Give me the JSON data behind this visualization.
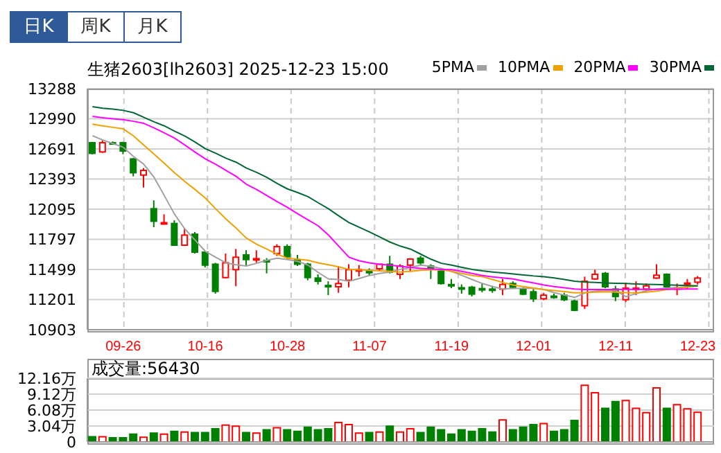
{
  "chart_data": [
    {
      "type": "candlestick",
      "title": "生猪2603[lh2603] 2025-12-23 15:00",
      "annotations": [
        "日K",
        "周K",
        "月K"
      ],
      "categories": [
        null,
        null,
        null,
        "09-26",
        null,
        null,
        null,
        null,
        null,
        null,
        null,
        "10-16",
        null,
        null,
        null,
        null,
        null,
        null,
        null,
        "10-28",
        null,
        null,
        null,
        null,
        null,
        null,
        null,
        "11-07",
        null,
        null,
        null,
        null,
        null,
        null,
        null,
        "11-19",
        null,
        null,
        null,
        null,
        null,
        null,
        null,
        "12-01",
        null,
        null,
        null,
        null,
        null,
        null,
        null,
        "12-11",
        null,
        null,
        null,
        null,
        null,
        null,
        null,
        "12-23"
      ],
      "ohlc": [
        [
          12753,
          12762,
          12639,
          12648
        ],
        [
          12662,
          12776,
          12653,
          12753
        ],
        [
          12753,
          12766,
          12735,
          12748
        ],
        [
          12753,
          12762,
          12639,
          12671
        ],
        [
          12593,
          12602,
          12420,
          12456
        ],
        [
          12433,
          12502,
          12310,
          12479
        ],
        [
          12100,
          12183,
          11917,
          11976
        ],
        [
          11953,
          12045,
          11944,
          11962
        ],
        [
          11954,
          11986,
          11735,
          11739
        ],
        [
          11739,
          11908,
          11739,
          11839
        ],
        [
          11848,
          11870,
          11657,
          11670
        ],
        [
          11670,
          11680,
          11519,
          11542
        ],
        [
          11551,
          11565,
          11259,
          11282
        ],
        [
          11419,
          11657,
          11410,
          11565
        ],
        [
          11497,
          11702,
          11333,
          11620
        ],
        [
          11643,
          11689,
          11533,
          11597
        ],
        [
          11597,
          11689,
          11565,
          11606
        ],
        [
          11588,
          11611,
          11460,
          11574
        ],
        [
          11656,
          11748,
          11633,
          11725
        ],
        [
          11725,
          11748,
          11597,
          11625
        ],
        [
          11597,
          11643,
          11533,
          11551
        ],
        [
          11551,
          11565,
          11392,
          11419
        ],
        [
          11414,
          11451,
          11350,
          11382
        ],
        [
          11341,
          11382,
          11245,
          11336
        ],
        [
          11328,
          11533,
          11268,
          11360
        ],
        [
          11392,
          11551,
          11323,
          11497
        ],
        [
          11488,
          11543,
          11430,
          11497
        ],
        [
          11480,
          11510,
          11440,
          11470
        ],
        [
          11506,
          11551,
          11492,
          11551
        ],
        [
          11551,
          11634,
          11460,
          11474
        ],
        [
          11451,
          11551,
          11405,
          11533
        ],
        [
          11542,
          11611,
          11474,
          11602
        ],
        [
          11611,
          11634,
          11533,
          11565
        ],
        [
          11533,
          11551,
          11405,
          11506
        ],
        [
          11483,
          11497,
          11350,
          11360
        ],
        [
          11350,
          11405,
          11314,
          11346
        ],
        [
          11318,
          11351,
          11259,
          11314
        ],
        [
          11323,
          11337,
          11232,
          11255
        ],
        [
          11310,
          11365,
          11273,
          11305
        ],
        [
          11305,
          11337,
          11268,
          11300
        ],
        [
          11305,
          11405,
          11245,
          11351
        ],
        [
          11360,
          11382,
          11314,
          11323
        ],
        [
          11305,
          11323,
          11245,
          11255
        ],
        [
          11278,
          11305,
          11177,
          11209
        ],
        [
          11209,
          11268,
          11196,
          11245
        ],
        [
          11235,
          11259,
          11209,
          11231
        ],
        [
          11245,
          11268,
          11186,
          11200
        ],
        [
          11186,
          11200,
          11086,
          11095
        ],
        [
          11140,
          11428,
          11109,
          11382
        ],
        [
          11405,
          11497,
          11396,
          11451
        ],
        [
          11460,
          11474,
          11314,
          11328
        ],
        [
          11305,
          11337,
          11186,
          11231
        ],
        [
          11200,
          11369,
          11177,
          11314
        ],
        [
          11305,
          11382,
          11245,
          11314
        ],
        [
          11305,
          11360,
          11282,
          11337
        ],
        [
          11414,
          11551,
          11405,
          11442
        ],
        [
          11451,
          11460,
          11314,
          11328
        ],
        [
          11314,
          11360,
          11245,
          11318
        ],
        [
          11360,
          11405,
          11305,
          11365
        ],
        [
          11373,
          11433,
          11350,
          11414
        ]
      ],
      "colors": [
        "#008000",
        "#ff0000",
        "#008000",
        "#008000",
        "#008000",
        "#ff0000",
        "#008000",
        "#ff0000",
        "#008000",
        "#ff0000",
        "#008000",
        "#008000",
        "#008000",
        "#ff0000",
        "#ff0000",
        "#008000",
        "#ff0000",
        "#008000",
        "#ff0000",
        "#008000",
        "#008000",
        "#008000",
        "#008000",
        "#008000",
        "#ff0000",
        "#ff0000",
        "#ff0000",
        "#008000",
        "#ff0000",
        "#008000",
        "#ff0000",
        "#ff0000",
        "#008000",
        "#008000",
        "#008000",
        "#008000",
        "#008000",
        "#008000",
        "#008000",
        "#008000",
        "#ff0000",
        "#008000",
        "#008000",
        "#008000",
        "#ff0000",
        "#008000",
        "#008000",
        "#008000",
        "#ff0000",
        "#ff0000",
        "#008000",
        "#008000",
        "#ff0000",
        "#ff0000",
        "#ff0000",
        "#ff0000",
        "#008000",
        "#ff0000",
        "#ff0000",
        "#ff0000"
      ],
      "series": [
        {
          "name": "5PMA",
          "type": "line",
          "color": "#a0a0a0",
          "values": [
            12822,
            12780,
            12745,
            12708,
            12616,
            12540,
            12411,
            12230,
            12045,
            11900,
            11790,
            11679,
            11620,
            11565,
            11545,
            11533,
            11560,
            11590,
            11611,
            11597,
            11580,
            11542,
            11470,
            11405,
            11400,
            11382,
            11410,
            11440,
            11460,
            11474,
            11500,
            11520,
            11542,
            11530,
            11510,
            11480,
            11440,
            11400,
            11360,
            11330,
            11305,
            11310,
            11312,
            11314,
            11300,
            11270,
            11245,
            11223,
            11268,
            11285,
            11291,
            11291,
            11230,
            11260,
            11290,
            11305,
            11314,
            11320,
            11330,
            11337
          ]
        },
        {
          "name": "10PMA",
          "type": "line",
          "color": "#f0a000",
          "values": [
            12936,
            12920,
            12905,
            12890,
            12820,
            12730,
            12640,
            12550,
            12456,
            12370,
            12290,
            12205,
            12100,
            12000,
            11908,
            11810,
            11748,
            11700,
            11650,
            11611,
            11600,
            11590,
            11565,
            11545,
            11525,
            11500,
            11495,
            11490,
            11485,
            11480,
            11474,
            11480,
            11490,
            11495,
            11497,
            11480,
            11460,
            11440,
            11428,
            11400,
            11370,
            11345,
            11330,
            11314,
            11300,
            11290,
            11280,
            11268,
            11270,
            11275,
            11278,
            11275,
            11270,
            11268,
            11275,
            11285,
            11300,
            11310,
            11325,
            11337
          ]
        },
        {
          "name": "20PMA",
          "type": "line",
          "color": "#ff00ff",
          "values": [
            13014,
            13000,
            12990,
            12982,
            12965,
            12945,
            12900,
            12850,
            12799,
            12730,
            12660,
            12593,
            12540,
            12480,
            12420,
            12342,
            12290,
            12230,
            12170,
            12114,
            12050,
            11990,
            11931,
            11840,
            11730,
            11620,
            11585,
            11565,
            11550,
            11542,
            11530,
            11520,
            11510,
            11505,
            11500,
            11497,
            11480,
            11460,
            11440,
            11425,
            11415,
            11405,
            11385,
            11365,
            11345,
            11330,
            11318,
            11305,
            11300,
            11300,
            11300,
            11300,
            11302,
            11302,
            11303,
            11303,
            11304,
            11304,
            11305,
            11305
          ]
        },
        {
          "name": "30PMA",
          "type": "line",
          "color": "#006633",
          "values": [
            13110,
            13095,
            13085,
            13073,
            13050,
            13005,
            12960,
            12920,
            12868,
            12820,
            12760,
            12694,
            12650,
            12600,
            12560,
            12502,
            12460,
            12410,
            12350,
            12296,
            12260,
            12220,
            12159,
            12100,
            12030,
            11963,
            11917,
            11870,
            11820,
            11770,
            11730,
            11700,
            11650,
            11600,
            11560,
            11542,
            11520,
            11500,
            11485,
            11474,
            11465,
            11455,
            11445,
            11435,
            11428,
            11415,
            11400,
            11382,
            11375,
            11370,
            11365,
            11362,
            11360,
            11355,
            11352,
            11350,
            11347,
            11344,
            11340,
            11337
          ]
        }
      ],
      "marker": "none",
      "line_style": "solid",
      "ylim": [
        10903,
        13288
      ],
      "yticks": [
        10903,
        11201,
        11499,
        11797,
        12095,
        12393,
        12691,
        12990,
        13288
      ],
      "grid": true,
      "legend": "top right"
    },
    {
      "type": "bar",
      "title": "成交量:56430",
      "categories": [
        null,
        null,
        null,
        null,
        null,
        null,
        null,
        null,
        null,
        null,
        null,
        null,
        null,
        null,
        null,
        null,
        null,
        null,
        null,
        null,
        null,
        null,
        null,
        null,
        null,
        null,
        null,
        null,
        null,
        null,
        null,
        null,
        null,
        null,
        null,
        null,
        null,
        null,
        null,
        null,
        null,
        null,
        null,
        null,
        null,
        null,
        null,
        null,
        null,
        null,
        null,
        null,
        null,
        null,
        null,
        null,
        null,
        null,
        null,
        null
      ],
      "tick_labels": "y",
      "values": [
        1.0,
        1.0,
        0.8,
        0.8,
        1.5,
        0.9,
        1.7,
        1.5,
        2.0,
        1.9,
        1.8,
        1.8,
        2.5,
        3.2,
        3.0,
        1.8,
        1.7,
        2.3,
        2.7,
        2.3,
        2.0,
        2.8,
        2.3,
        2.5,
        3.7,
        3.3,
        1.7,
        1.8,
        1.9,
        3.0,
        1.9,
        2.5,
        1.8,
        2.8,
        2.3,
        1.5,
        2.3,
        2.0,
        2.5,
        1.9,
        4.2,
        2.3,
        2.8,
        3.3,
        3.5,
        2.0,
        2.3,
        4.1,
        10.8,
        9.4,
        6.4,
        7.7,
        7.9,
        6.4,
        5.6,
        10.3,
        6.4,
        7.1,
        6.3,
        5.643
      ],
      "colors": [
        "#008000",
        "#ff0000",
        "#008000",
        "#008000",
        "#008000",
        "#ff0000",
        "#008000",
        "#ff0000",
        "#008000",
        "#ff0000",
        "#008000",
        "#008000",
        "#008000",
        "#ff0000",
        "#ff0000",
        "#008000",
        "#ff0000",
        "#008000",
        "#ff0000",
        "#008000",
        "#008000",
        "#008000",
        "#008000",
        "#008000",
        "#ff0000",
        "#ff0000",
        "#ff0000",
        "#008000",
        "#ff0000",
        "#008000",
        "#ff0000",
        "#ff0000",
        "#008000",
        "#008000",
        "#008000",
        "#008000",
        "#008000",
        "#008000",
        "#008000",
        "#008000",
        "#ff0000",
        "#008000",
        "#008000",
        "#008000",
        "#ff0000",
        "#008000",
        "#008000",
        "#008000",
        "#ff0000",
        "#ff0000",
        "#008000",
        "#008000",
        "#ff0000",
        "#ff0000",
        "#ff0000",
        "#ff0000",
        "#008000",
        "#ff0000",
        "#ff0000",
        "#ff0000"
      ],
      "ylim": [
        0,
        12.16
      ],
      "yticks": [
        0,
        {
          "value": 3.04,
          "label": "3.04万"
        },
        {
          "value": 6.08,
          "label": "6.08万"
        },
        {
          "value": 9.12,
          "label": "9.12万"
        },
        {
          "value": 12.16,
          "label": "12.16万"
        }
      ],
      "grid": "y"
    }
  ]
}
